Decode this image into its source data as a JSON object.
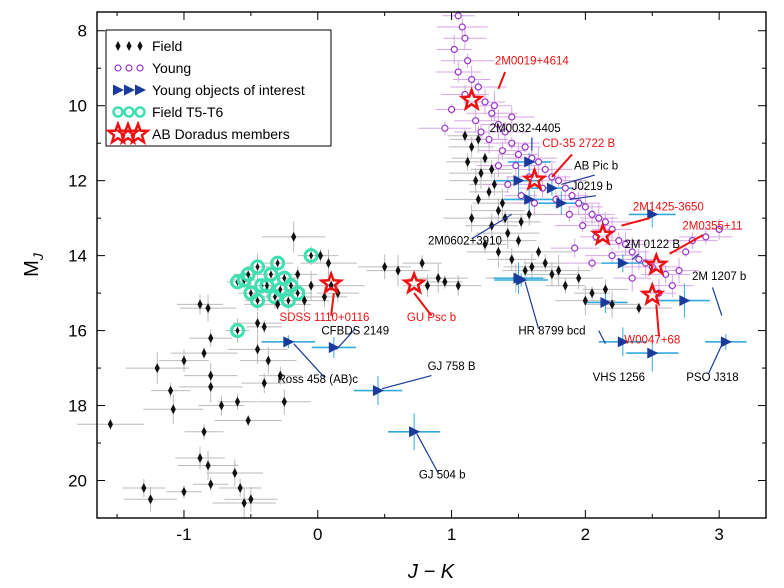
{
  "chart_data": {
    "type": "scatter",
    "title": "",
    "xlabel": "J − K",
    "ylabel": "M",
    "ylabel_sub": "J",
    "xlim": [
      -1.65,
      3.35
    ],
    "ylim": [
      7.5,
      21.0
    ],
    "y_inverted": true,
    "x_ticks": [
      -1,
      0,
      1,
      2,
      3
    ],
    "x_tick_labels": [
      "-1",
      "0",
      "1",
      "2",
      "3"
    ],
    "y_ticks": [
      8,
      10,
      12,
      14,
      16,
      18,
      20
    ],
    "y_tick_labels": [
      "8",
      "10",
      "12",
      "14",
      "16",
      "18",
      "20"
    ],
    "grid": false,
    "legend_position": "top-left",
    "colors": {
      "field": "#111111",
      "young": "#9933cc",
      "young_interest": "#1a3a9c",
      "young_interest_err": "#33aadd",
      "field_t": "#3de0b0",
      "abdor": "#ee1111",
      "annot_black": "#000000",
      "annot_red": "#ee1111",
      "leader_blue": "#1a3a9c",
      "errbar_gray": "#bbbbbb",
      "errbar_purple": "#d7a6e6"
    },
    "series": [
      {
        "name": "Field",
        "marker": "diamond",
        "points": [
          [
            -1.55,
            18.5
          ],
          [
            -1.3,
            20.2
          ],
          [
            -1.25,
            20.5
          ],
          [
            -1.2,
            17
          ],
          [
            -1.1,
            17.6
          ],
          [
            -1.0,
            16.8
          ],
          [
            -1.08,
            18.1
          ],
          [
            -1.0,
            20.3
          ],
          [
            -0.88,
            15.3
          ],
          [
            -0.82,
            15.4
          ],
          [
            -0.85,
            16.6
          ],
          [
            -0.8,
            16.2
          ],
          [
            -0.8,
            17.2
          ],
          [
            -0.8,
            17.5
          ],
          [
            -0.85,
            18.7
          ],
          [
            -0.88,
            19.4
          ],
          [
            -0.82,
            19.6
          ],
          [
            -0.8,
            20.1
          ],
          [
            -0.72,
            18.0
          ],
          [
            -0.62,
            19.8
          ],
          [
            -0.52,
            18.4
          ],
          [
            -0.58,
            20.2
          ],
          [
            -0.5,
            20.5
          ],
          [
            -0.55,
            20.6
          ],
          [
            -0.6,
            17.9
          ],
          [
            -0.45,
            15.8
          ],
          [
            -0.45,
            16.5
          ],
          [
            -0.4,
            15.9
          ],
          [
            -0.4,
            17.4
          ],
          [
            -0.37,
            16.8
          ],
          [
            -0.3,
            15.3
          ],
          [
            -0.28,
            17.2
          ],
          [
            -0.25,
            17.9
          ],
          [
            -0.18,
            13.5
          ],
          [
            -0.15,
            14.5
          ],
          [
            -0.1,
            15.2
          ],
          [
            -0.05,
            14.8
          ],
          [
            0.02,
            14.0
          ],
          [
            0.05,
            15.1
          ],
          [
            0.08,
            14.2
          ],
          [
            0.1,
            14.8
          ],
          [
            0.15,
            15.0
          ],
          [
            0.5,
            14.3
          ],
          [
            0.6,
            14.4
          ],
          [
            0.78,
            14.2
          ],
          [
            0.82,
            14.8
          ],
          [
            0.9,
            14.6
          ],
          [
            0.95,
            14.7
          ],
          [
            1.05,
            14.8
          ],
          [
            1.15,
            13.0
          ],
          [
            1.2,
            12.5
          ],
          [
            1.25,
            13.7
          ],
          [
            1.3,
            13.2
          ],
          [
            1.35,
            13.9
          ],
          [
            1.4,
            13.0
          ],
          [
            1.45,
            14.1
          ],
          [
            1.48,
            14.6
          ],
          [
            1.5,
            13.6
          ],
          [
            1.55,
            14.4
          ],
          [
            1.6,
            14.3
          ],
          [
            1.65,
            13.9
          ],
          [
            1.7,
            14.2
          ],
          [
            1.75,
            14.5
          ],
          [
            1.8,
            14.4
          ],
          [
            1.85,
            14.8
          ],
          [
            1.95,
            14.6
          ],
          [
            2.0,
            15.2
          ],
          [
            2.05,
            15.0
          ],
          [
            2.15,
            14.9
          ],
          [
            2.2,
            15.3
          ],
          [
            2.4,
            15.4
          ],
          [
            1.12,
            11.5
          ],
          [
            1.18,
            12.0
          ],
          [
            1.22,
            11.8
          ],
          [
            1.28,
            12.3
          ],
          [
            1.32,
            12.1
          ],
          [
            1.38,
            12.6
          ],
          [
            1.1,
            10.8
          ],
          [
            1.15,
            11.1
          ],
          [
            1.2,
            10.9
          ],
          [
            1.25,
            11.4
          ],
          [
            1.3,
            11.7
          ],
          [
            1.35,
            12.8
          ],
          [
            1.42,
            13.4
          ],
          [
            1.52,
            13.1
          ],
          [
            1.58,
            12.9
          ]
        ]
      },
      {
        "name": "Young",
        "marker": "circle",
        "points": [
          [
            1.05,
            7.6
          ],
          [
            1.08,
            7.9
          ],
          [
            1.1,
            8.2
          ],
          [
            1.02,
            8.5
          ],
          [
            1.12,
            8.8
          ],
          [
            1.05,
            9.1
          ],
          [
            1.15,
            9.3
          ],
          [
            1.2,
            9.5
          ],
          [
            1.1,
            9.7
          ],
          [
            1.25,
            9.9
          ],
          [
            1.0,
            10.1
          ],
          [
            1.3,
            10.2
          ],
          [
            1.18,
            10.4
          ],
          [
            1.35,
            10.5
          ],
          [
            0.95,
            10.6
          ],
          [
            1.4,
            10.7
          ],
          [
            1.28,
            10.9
          ],
          [
            1.45,
            11.0
          ],
          [
            1.38,
            11.2
          ],
          [
            1.5,
            11.3
          ],
          [
            1.55,
            11.1
          ],
          [
            1.6,
            11.4
          ],
          [
            1.48,
            11.6
          ],
          [
            1.65,
            11.5
          ],
          [
            1.7,
            11.7
          ],
          [
            1.58,
            11.9
          ],
          [
            1.75,
            11.9
          ],
          [
            1.8,
            12.0
          ],
          [
            1.68,
            12.2
          ],
          [
            1.85,
            12.2
          ],
          [
            1.9,
            12.4
          ],
          [
            1.78,
            12.5
          ],
          [
            1.95,
            12.6
          ],
          [
            2.0,
            12.7
          ],
          [
            1.88,
            12.9
          ],
          [
            2.05,
            12.9
          ],
          [
            2.1,
            13.0
          ],
          [
            1.98,
            13.2
          ],
          [
            2.15,
            13.1
          ],
          [
            2.2,
            13.3
          ],
          [
            2.08,
            13.5
          ],
          [
            2.25,
            13.6
          ],
          [
            2.3,
            13.7
          ],
          [
            2.35,
            13.9
          ],
          [
            2.2,
            14.0
          ],
          [
            2.4,
            14.1
          ],
          [
            2.45,
            14.2
          ],
          [
            2.5,
            14.3
          ],
          [
            2.6,
            14.5
          ],
          [
            2.7,
            14.4
          ],
          [
            2.75,
            13.9
          ],
          [
            2.8,
            13.6
          ],
          [
            2.65,
            14.8
          ],
          [
            2.55,
            15.0
          ],
          [
            2.9,
            13.5
          ],
          [
            3.0,
            13.3
          ],
          [
            2.35,
            14.6
          ],
          [
            2.05,
            14.2
          ],
          [
            1.92,
            13.8
          ],
          [
            1.62,
            12.6
          ],
          [
            1.52,
            12.4
          ],
          [
            1.42,
            12.1
          ],
          [
            1.35,
            11.6
          ],
          [
            1.32,
            10.0
          ],
          [
            1.22,
            10.7
          ],
          [
            1.45,
            10.3
          ]
        ]
      },
      {
        "name": "Young objects of interest",
        "marker": "triangle-right",
        "points": [
          [
            -0.22,
            16.3
          ],
          [
            0.12,
            16.45
          ],
          [
            0.45,
            17.6
          ],
          [
            0.72,
            18.7
          ],
          [
            1.58,
            11.5
          ],
          [
            1.5,
            12.0
          ],
          [
            1.58,
            12.5
          ],
          [
            1.75,
            12.2
          ],
          [
            1.82,
            12.6
          ],
          [
            1.5,
            14.6
          ],
          [
            1.52,
            14.65
          ],
          [
            2.15,
            15.25
          ],
          [
            2.28,
            16.3
          ],
          [
            2.5,
            16.6
          ],
          [
            2.28,
            14.2
          ],
          [
            2.5,
            12.9
          ],
          [
            2.74,
            15.2
          ],
          [
            3.05,
            16.3
          ]
        ]
      },
      {
        "name": "Field T5-T6",
        "marker": "circle-cyan",
        "points": [
          [
            -0.6,
            14.7
          ],
          [
            -0.55,
            14.65
          ],
          [
            -0.5,
            15.0
          ],
          [
            -0.45,
            14.3
          ],
          [
            -0.42,
            14.8
          ],
          [
            -0.35,
            14.5
          ],
          [
            -0.32,
            15.1
          ],
          [
            -0.3,
            14.2
          ],
          [
            -0.25,
            14.6
          ],
          [
            -0.22,
            15.2
          ],
          [
            -0.2,
            14.8
          ],
          [
            -0.15,
            15.0
          ],
          [
            -0.45,
            15.2
          ],
          [
            -0.38,
            14.8
          ],
          [
            -0.52,
            14.5
          ],
          [
            -0.05,
            14.0
          ],
          [
            -0.6,
            16.0
          ],
          [
            -0.28,
            14.9
          ]
        ]
      },
      {
        "name": "AB Doradus members",
        "marker": "star",
        "points": [
          [
            1.15,
            9.85
          ],
          [
            1.62,
            11.98
          ],
          [
            2.13,
            13.45
          ],
          [
            2.53,
            14.25
          ],
          [
            2.5,
            15.05
          ],
          [
            0.1,
            14.75
          ],
          [
            0.72,
            14.75
          ]
        ]
      }
    ],
    "annotations": [
      {
        "text": "2M0019+4614",
        "color": "red",
        "x": 1.6,
        "y": 8.9
      },
      {
        "text": "2M0032-4405",
        "color": "black",
        "x": 1.55,
        "y": 10.7
      },
      {
        "text": "CD-35 2722 B",
        "color": "red",
        "x": 1.95,
        "y": 11.1
      },
      {
        "text": "AB Pic b",
        "color": "black",
        "x": 2.08,
        "y": 11.7
      },
      {
        "text": "J0219 b",
        "color": "black",
        "x": 2.05,
        "y": 12.25
      },
      {
        "text": "2M1425-3650",
        "color": "red",
        "x": 2.62,
        "y": 12.8
      },
      {
        "text": "2M0355+11",
        "color": "red",
        "x": 2.95,
        "y": 13.3
      },
      {
        "text": "2M0602+3910",
        "color": "black",
        "x": 1.1,
        "y": 13.7
      },
      {
        "text": "2M 0122 B",
        "color": "black",
        "x": 2.5,
        "y": 13.8
      },
      {
        "text": "2M 1207 b",
        "color": "black",
        "x": 3.0,
        "y": 14.65
      },
      {
        "text": "SDSS 1110+0116",
        "color": "red",
        "x": 0.05,
        "y": 15.75
      },
      {
        "text": "GU Psc b",
        "color": "red",
        "x": 0.85,
        "y": 15.75
      },
      {
        "text": "CFBDS 2149",
        "color": "black",
        "x": 0.28,
        "y": 16.1
      },
      {
        "text": "HR 8799 bcd",
        "color": "black",
        "x": 1.75,
        "y": 16.1
      },
      {
        "text": "W0047+68",
        "color": "red",
        "x": 2.5,
        "y": 16.35
      },
      {
        "text": "Ross 458 (AB)c",
        "color": "black",
        "x": 0.0,
        "y": 17.4
      },
      {
        "text": "GJ 758 B",
        "color": "black",
        "x": 1.0,
        "y": 17.05
      },
      {
        "text": "VHS 1256",
        "color": "black",
        "x": 2.25,
        "y": 17.35
      },
      {
        "text": "PSO J318",
        "color": "black",
        "x": 2.95,
        "y": 17.35
      },
      {
        "text": "GJ 504 b",
        "color": "black",
        "x": 0.93,
        "y": 19.95
      }
    ]
  }
}
